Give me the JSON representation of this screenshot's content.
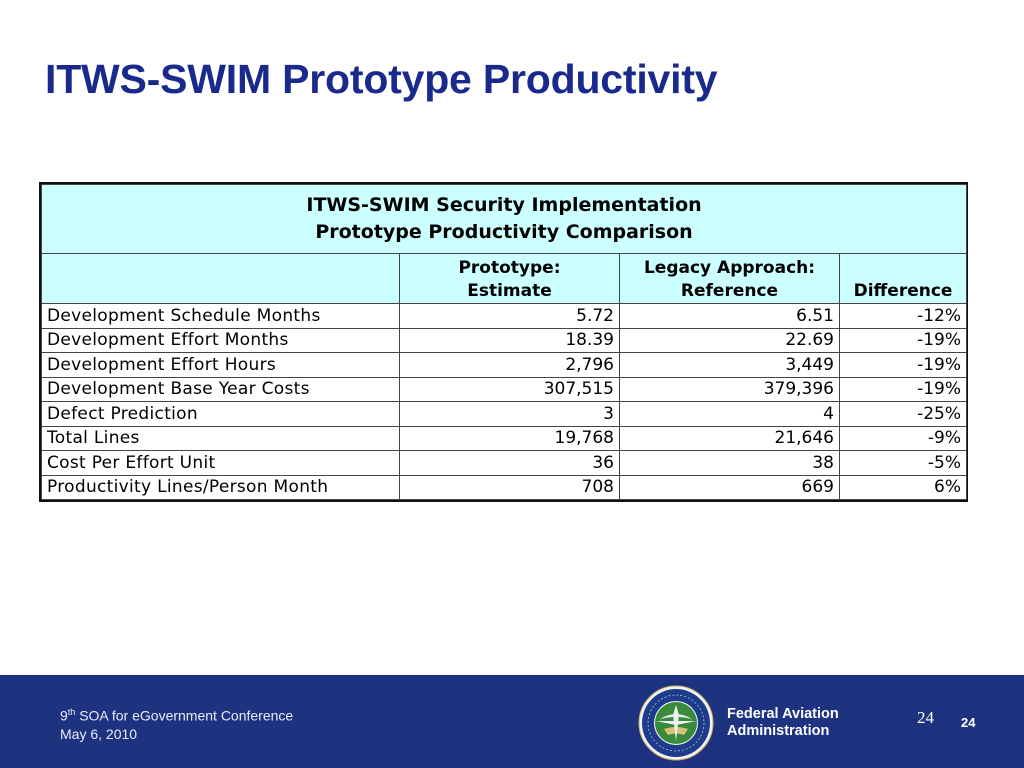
{
  "slide": {
    "title": "ITWS-SWIM Prototype Productivity"
  },
  "table": {
    "caption_line1": "ITWS-SWIM Security Implementation",
    "caption_line2": "Prototype Productivity Comparison",
    "headers": {
      "metric": "",
      "prototype_line1": "Prototype:",
      "prototype_line2": "Estimate",
      "legacy_line1": "Legacy Approach:",
      "legacy_line2": "Reference",
      "difference": "Difference"
    },
    "rows": [
      {
        "metric": "Development Schedule Months",
        "prototype": "5.72",
        "legacy": "6.51",
        "difference": "-12%"
      },
      {
        "metric": "Development Effort Months",
        "prototype": "18.39",
        "legacy": "22.69",
        "difference": "-19%"
      },
      {
        "metric": "Development Effort Hours",
        "prototype": "2,796",
        "legacy": "3,449",
        "difference": "-19%"
      },
      {
        "metric": "Development Base Year Costs",
        "prototype": "307,515",
        "legacy": "379,396",
        "difference": "-19%"
      },
      {
        "metric": "Defect Prediction",
        "prototype": "3",
        "legacy": "4",
        "difference": "-25%"
      },
      {
        "metric": "Total Lines",
        "prototype": "19,768",
        "legacy": "21,646",
        "difference": "-9%"
      },
      {
        "metric": "Cost Per Effort Unit",
        "prototype": "36",
        "legacy": "38",
        "difference": "-5%"
      },
      {
        "metric": "Productivity Lines/Person Month",
        "prototype": "708",
        "legacy": "669",
        "difference": "6%"
      }
    ]
  },
  "footer": {
    "conference_number": "9",
    "conference_superscript": "th",
    "conference_name": " SOA for eGovernment Conference",
    "date": "May 6, 2010",
    "agency_line1": "Federal Aviation",
    "agency_line2": "Administration",
    "page_number": "24",
    "page_number_bold": "24",
    "seal_icon": "faa-seal-icon"
  },
  "colors": {
    "title": "#1a2a8c",
    "header_fill": "#ccffff",
    "footer_bar": "#1d3380"
  }
}
